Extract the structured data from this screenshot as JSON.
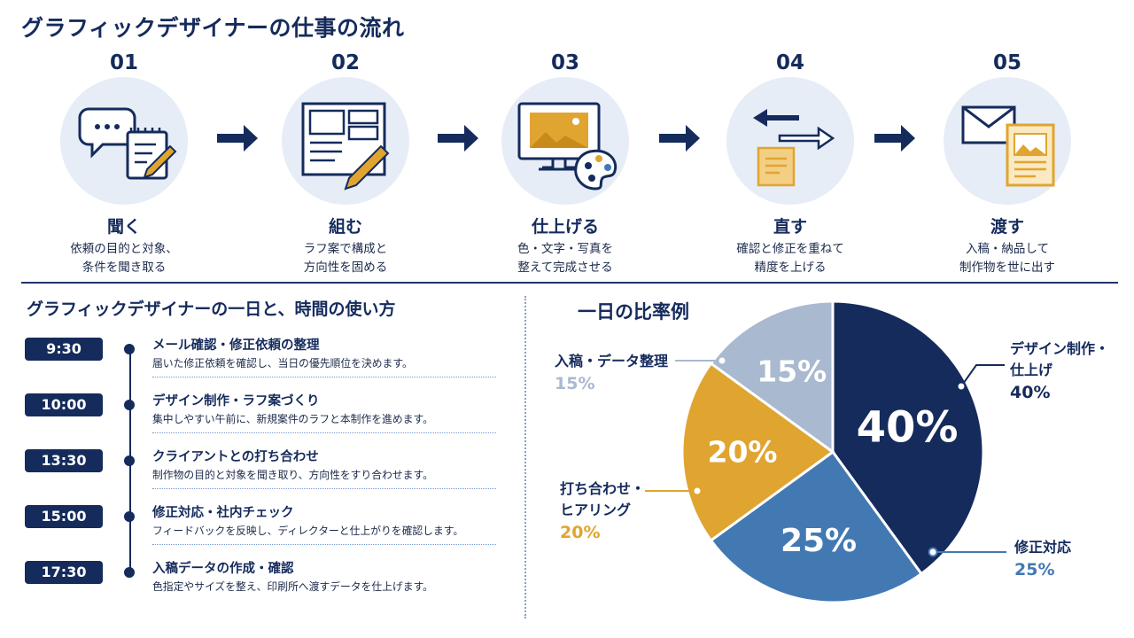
{
  "title": "グラフィックデザイナーの仕事の流れ",
  "steps": [
    {
      "num": "01",
      "title": "聞く",
      "desc": "依頼の目的と対象、\n条件を聞き取る",
      "icon": "chat-notepad-icon"
    },
    {
      "num": "02",
      "title": "組む",
      "desc": "ラフ案で構成と\n方向性を固める",
      "icon": "layout-pencil-icon"
    },
    {
      "num": "03",
      "title": "仕上げる",
      "desc": "色・文字・写真を\n整えて完成させる",
      "icon": "monitor-palette-icon"
    },
    {
      "num": "04",
      "title": "直す",
      "desc": "確認と修正を重ねて\n精度を上げる",
      "icon": "exchange-note-icon"
    },
    {
      "num": "05",
      "title": "渡す",
      "desc": "入稿・納品して\n制作物を世に出す",
      "icon": "envelope-document-icon"
    }
  ],
  "schedule": {
    "title": "グラフィックデザイナーの一日と、時間の使い方",
    "items": [
      {
        "time": "9:30",
        "task": "メール確認・修正依頼の整理",
        "desc": "届いた修正依頼を確認し、当日の優先順位を決めます。"
      },
      {
        "time": "10:00",
        "task": "デザイン制作・ラフ案づくり",
        "desc": "集中しやすい午前に、新規案件のラフと本制作を進めます。"
      },
      {
        "time": "13:30",
        "task": "クライアントとの打ち合わせ",
        "desc": "制作物の目的と対象を聞き取り、方向性をすり合わせます。"
      },
      {
        "time": "15:00",
        "task": "修正対応・社内チェック",
        "desc": "フィードバックを反映し、ディレクターと仕上がりを確認します。"
      },
      {
        "time": "17:30",
        "task": "入稿データの作成・確認",
        "desc": "色指定やサイズを整え、印刷所へ渡すデータを仕上げます。"
      }
    ]
  },
  "chart_data": {
    "type": "pie",
    "title": "一日の比率例",
    "slices": [
      {
        "label": "デザイン制作・\n仕上げ",
        "value": 40,
        "display": "40%",
        "color": "#152b5c",
        "label_color": "#152b5c"
      },
      {
        "label": "修正対応",
        "value": 25,
        "display": "25%",
        "color": "#4379b3",
        "label_color": "#4379b3"
      },
      {
        "label": "打ち合わせ・\nヒアリング",
        "value": 20,
        "display": "20%",
        "color": "#e0a530",
        "label_color": "#e0a530"
      },
      {
        "label": "入稿・データ整理",
        "value": 15,
        "display": "15%",
        "color": "#a9b9cf",
        "label_color": "#a9b9cf"
      }
    ]
  },
  "colors": {
    "navy": "#152b5c",
    "light_circle": "#e6edf7",
    "gold": "#e0a530"
  }
}
